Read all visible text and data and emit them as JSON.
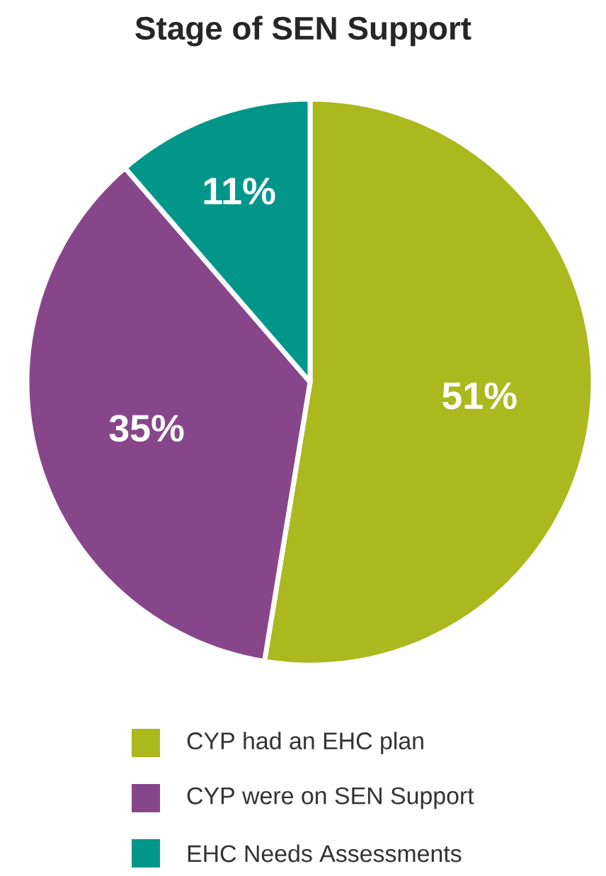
{
  "chart_data": {
    "type": "pie",
    "title": "Stage of SEN Support",
    "categories": [
      "CYP had an EHC plan",
      "CYP were on SEN Support",
      "EHC Needs Assessments"
    ],
    "values": [
      51,
      35,
      11
    ],
    "value_labels": [
      "51%",
      "35%",
      "11%"
    ],
    "colors": [
      "#abb81e",
      "#88468a",
      "#00968a"
    ],
    "legend": "bottom"
  }
}
